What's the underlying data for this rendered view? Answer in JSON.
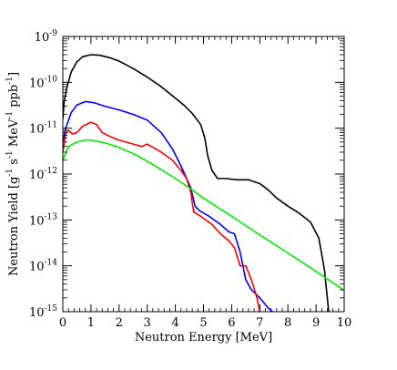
{
  "chart_data": {
    "type": "line",
    "title": "",
    "xlabel": "Neutron Energy [MeV]",
    "ylabel_parts": [
      "Neutron Yield [g",
      "-1",
      " s",
      "-1",
      " MeV",
      "-1",
      " ppb",
      "-1",
      "]"
    ],
    "xlim": [
      0,
      10
    ],
    "ylim": [
      1e-15,
      1e-09
    ],
    "y_scale": "log",
    "x_ticks": [
      0,
      1,
      2,
      3,
      4,
      5,
      6,
      7,
      8,
      9,
      10
    ],
    "x_tick_labels": [
      "0",
      "1",
      "2",
      "3",
      "4",
      "5",
      "6",
      "7",
      "8",
      "9",
      "10"
    ],
    "y_tick_exponents": [
      "-15",
      "-14",
      "-13",
      "-12",
      "-11",
      "-10",
      "-9"
    ],
    "y_tick_base": "10",
    "grid": false,
    "legend": "none",
    "series": [
      {
        "color": "#000000",
        "points": [
          [
            0.0,
            1.6e-11
          ],
          [
            0.05,
            4e-11
          ],
          [
            0.15,
            8e-11
          ],
          [
            0.3,
            1.7e-10
          ],
          [
            0.5,
            2.8e-10
          ],
          [
            0.7,
            3.6e-10
          ],
          [
            1.0,
            4e-10
          ],
          [
            1.3,
            3.9e-10
          ],
          [
            1.7,
            3.4e-10
          ],
          [
            2.0,
            2.9e-10
          ],
          [
            2.5,
            2e-10
          ],
          [
            3.0,
            1.3e-10
          ],
          [
            3.5,
            8e-11
          ],
          [
            4.0,
            4.5e-11
          ],
          [
            4.3,
            3.2e-11
          ],
          [
            4.6,
            2.1e-11
          ],
          [
            4.9,
            1.2e-11
          ],
          [
            5.05,
            6e-12
          ],
          [
            5.15,
            2.5e-12
          ],
          [
            5.3,
            1.2e-12
          ],
          [
            5.5,
            8e-13
          ],
          [
            5.8,
            8e-13
          ],
          [
            6.2,
            7.5e-13
          ],
          [
            6.6,
            7.5e-13
          ],
          [
            7.0,
            6.2e-13
          ],
          [
            7.3,
            4.5e-13
          ],
          [
            7.6,
            3e-13
          ],
          [
            8.0,
            2e-13
          ],
          [
            8.4,
            1.4e-13
          ],
          [
            8.8,
            9e-14
          ],
          [
            9.1,
            4e-14
          ],
          [
            9.3,
            8e-15
          ],
          [
            9.45,
            1e-15
          ]
        ]
      },
      {
        "color": "#0000ff",
        "points": [
          [
            0.0,
            5e-12
          ],
          [
            0.1,
            1e-11
          ],
          [
            0.3,
            2.2e-11
          ],
          [
            0.5,
            3.2e-11
          ],
          [
            0.8,
            3.8e-11
          ],
          [
            1.1,
            3.6e-11
          ],
          [
            1.5,
            3e-11
          ],
          [
            2.0,
            2.5e-11
          ],
          [
            2.5,
            2e-11
          ],
          [
            3.0,
            1.5e-11
          ],
          [
            3.5,
            8e-12
          ],
          [
            3.9,
            3.5e-12
          ],
          [
            4.2,
            1.5e-12
          ],
          [
            4.4,
            8e-13
          ],
          [
            4.55,
            5e-13
          ],
          [
            4.7,
            2e-13
          ],
          [
            4.85,
            1.6e-13
          ],
          [
            5.2,
            1.2e-13
          ],
          [
            5.6,
            8e-14
          ],
          [
            5.9,
            5.5e-14
          ],
          [
            6.1,
            5e-14
          ],
          [
            6.3,
            2e-14
          ],
          [
            6.5,
            5e-15
          ],
          [
            6.7,
            3e-15
          ],
          [
            7.0,
            2e-15
          ],
          [
            7.3,
            1.2e-15
          ],
          [
            7.45,
            1e-15
          ]
        ]
      },
      {
        "color": "#ff0000",
        "points": [
          [
            0.0,
            3e-12
          ],
          [
            0.1,
            7.5e-12
          ],
          [
            0.2,
            9e-12
          ],
          [
            0.35,
            7.5e-12
          ],
          [
            0.5,
            8e-12
          ],
          [
            0.7,
            1.1e-11
          ],
          [
            1.0,
            1.35e-11
          ],
          [
            1.2,
            1.2e-11
          ],
          [
            1.4,
            8e-12
          ],
          [
            1.7,
            6.5e-12
          ],
          [
            2.0,
            5.5e-12
          ],
          [
            2.5,
            4.5e-12
          ],
          [
            2.8,
            4e-12
          ],
          [
            3.0,
            4.5e-12
          ],
          [
            3.5,
            3e-12
          ],
          [
            3.9,
            2e-12
          ],
          [
            4.2,
            1.2e-12
          ],
          [
            4.4,
            8e-13
          ],
          [
            4.55,
            4e-13
          ],
          [
            4.65,
            1.5e-13
          ],
          [
            4.9,
            1.2e-13
          ],
          [
            5.3,
            8e-14
          ],
          [
            5.6,
            5e-14
          ],
          [
            5.9,
            3.5e-14
          ],
          [
            6.1,
            2.5e-14
          ],
          [
            6.3,
            1e-14
          ],
          [
            6.5,
            1e-14
          ],
          [
            6.7,
            5e-15
          ],
          [
            6.9,
            2e-15
          ],
          [
            7.0,
            1e-15
          ]
        ]
      },
      {
        "color": "#00ee00",
        "points": [
          [
            0.0,
            2e-12
          ],
          [
            0.2,
            4e-12
          ],
          [
            0.5,
            5e-12
          ],
          [
            0.8,
            5.5e-12
          ],
          [
            1.0,
            5.5e-12
          ],
          [
            1.5,
            4.8e-12
          ],
          [
            2.0,
            3.8e-12
          ],
          [
            2.5,
            2.8e-12
          ],
          [
            3.0,
            1.9e-12
          ],
          [
            3.5,
            1.25e-12
          ],
          [
            4.0,
            8e-13
          ],
          [
            4.5,
            5e-13
          ],
          [
            5.0,
            3e-13
          ],
          [
            5.5,
            1.9e-13
          ],
          [
            6.0,
            1.2e-13
          ],
          [
            6.5,
            7.5e-14
          ],
          [
            7.0,
            4.7e-14
          ],
          [
            7.5,
            3e-14
          ],
          [
            8.0,
            1.9e-14
          ],
          [
            8.5,
            1.2e-14
          ],
          [
            9.0,
            7.5e-15
          ],
          [
            9.5,
            4.7e-15
          ],
          [
            10.0,
            2.9e-15
          ]
        ]
      }
    ]
  }
}
